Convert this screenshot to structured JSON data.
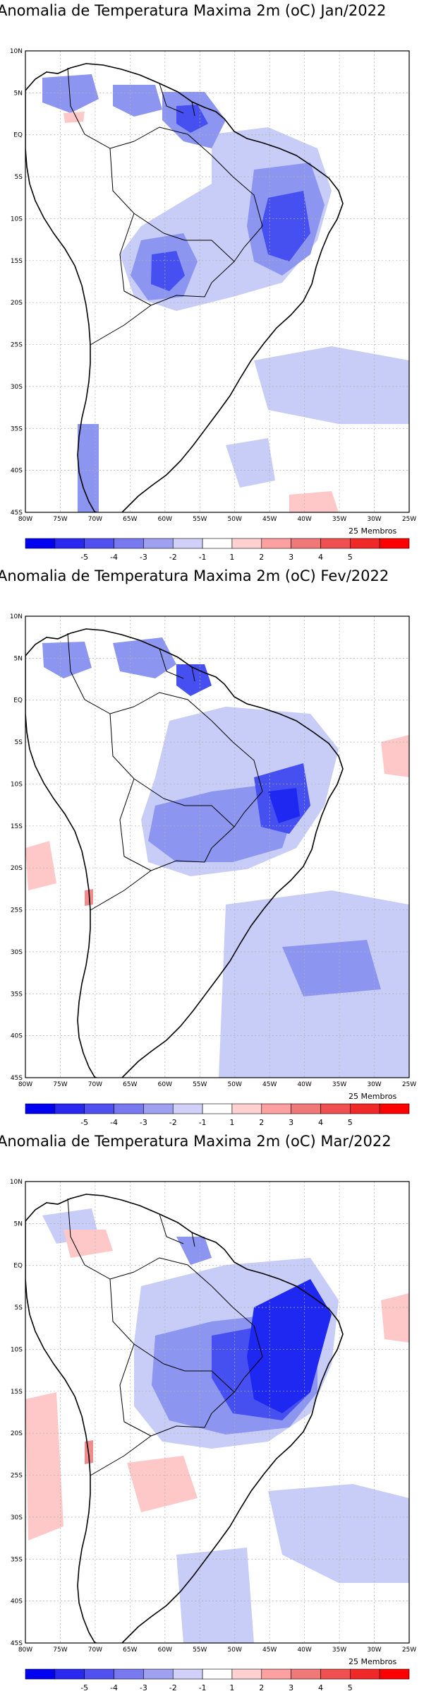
{
  "panels": [
    {
      "title": "Anomalia de Temperatura Maxima 2m (oC) Jan/2022",
      "month": "Jan/2022"
    },
    {
      "title": "Anomalia de Temperatura Maxima 2m (oC) Fev/2022",
      "month": "Fev/2022"
    },
    {
      "title": "Anomalia de Temperatura Maxima 2m (oC) Mar/2022",
      "month": "Mar/2022"
    }
  ],
  "lat_labels": [
    "10N",
    "5N",
    "EQ",
    "5S",
    "10S",
    "15S",
    "20S",
    "25S",
    "30S",
    "35S",
    "40S",
    "45S"
  ],
  "lon_labels": [
    "80W",
    "75W",
    "70W",
    "65W",
    "60W",
    "55W",
    "50W",
    "45W",
    "40W",
    "35W",
    "30W",
    "25W"
  ],
  "members_label": "25 Membros",
  "colorbar": {
    "labels": [
      "-5",
      "-4",
      "-3",
      "-2",
      "-1",
      "1",
      "2",
      "3",
      "4",
      "5"
    ],
    "colors": [
      "#0000f0",
      "#2828f0",
      "#5050f0",
      "#7878f0",
      "#a0a0f0",
      "#d0d0f8",
      "#ffffff",
      "#ffd0d0",
      "#ffa0a0",
      "#f07878",
      "#f05050",
      "#f02828",
      "#ff0000"
    ]
  },
  "colors": {
    "light_blue": "#c8cdf8",
    "mid_blue": "#8c96f0",
    "strong_blue": "#4650f0",
    "deep_blue": "#1e28f0",
    "light_red": "#ffc8c8",
    "mid_red": "#f08c8c"
  }
}
